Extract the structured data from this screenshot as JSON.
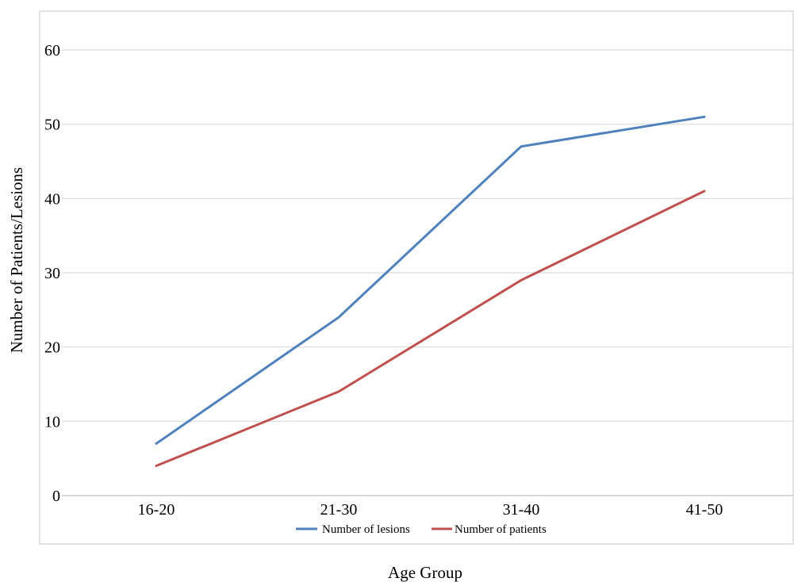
{
  "chart_data": {
    "type": "line",
    "categories": [
      "16-20",
      "21-30",
      "31-40",
      "41-50"
    ],
    "series": [
      {
        "name": "Number of lesions",
        "values": [
          7,
          24,
          47,
          51
        ],
        "color": "#4F81BD"
      },
      {
        "name": "Number of patients",
        "values": [
          4,
          14,
          29,
          41
        ],
        "color": "#C0504D"
      }
    ],
    "xlabel": "Age Group",
    "ylabel": "Number of Patients/Lesions",
    "ylim": [
      0,
      60
    ],
    "yticks": [
      0,
      10,
      20,
      30,
      40,
      50,
      60
    ],
    "grid": true,
    "legend_position": "bottom"
  }
}
